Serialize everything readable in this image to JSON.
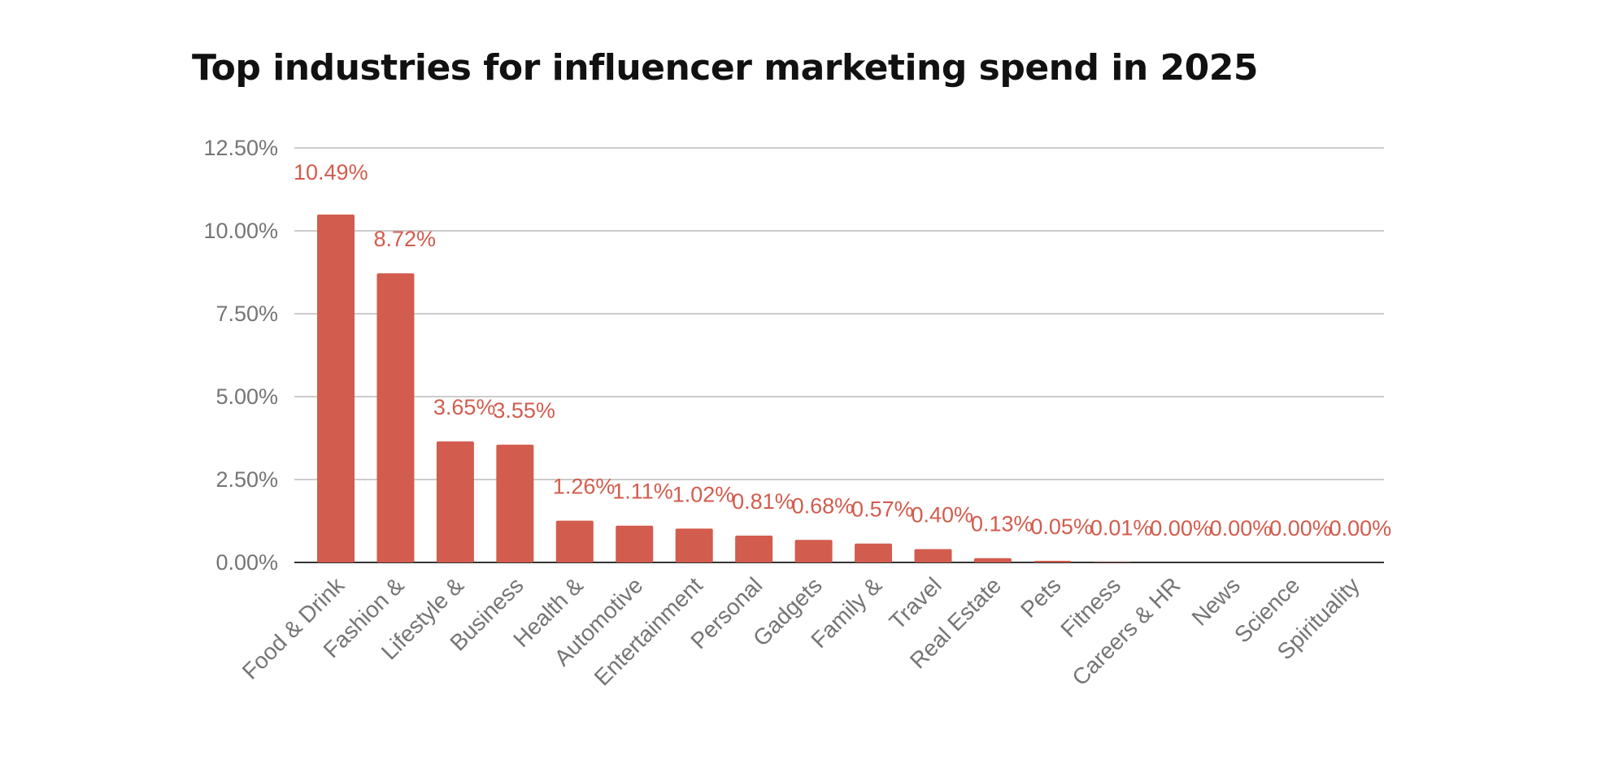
{
  "chart_data": {
    "type": "bar",
    "title": "Top industries for influencer marketing spend in 2025",
    "categories": [
      "Food & Drink",
      "Fashion &",
      "Lifestyle &",
      "Business",
      "Health &",
      "Automotive",
      "Entertainment",
      "Personal",
      "Gadgets",
      "Family &",
      "Travel",
      "Real Estate",
      "Pets",
      "Fitness",
      "Careers & HR",
      "News",
      "Science",
      "Spirituality"
    ],
    "values": [
      10.49,
      8.72,
      3.65,
      3.55,
      1.26,
      1.11,
      1.02,
      0.81,
      0.68,
      0.57,
      0.4,
      0.13,
      0.05,
      0.01,
      0.0,
      0.0,
      0.0,
      0.0
    ],
    "data_labels": [
      "10.49%",
      "8.72%",
      "3.65%",
      "3.55%",
      "1.26%",
      "1.11%",
      "1.02%",
      "0.81%",
      "0.68%",
      "0.57%",
      "0.40%",
      "0.13%",
      "0.05%",
      "0.01%",
      "0.00%",
      "0.00%",
      "0.00%",
      "0.00%"
    ],
    "y_ticks": [
      "0.00%",
      "2.50%",
      "5.00%",
      "7.50%",
      "10.00%",
      "12.50%"
    ],
    "ylim": [
      0,
      12.5
    ],
    "xlabel": "",
    "ylabel": "",
    "grid": true,
    "legend": "none",
    "bar_color": "#d25c4d",
    "label_color": "#d25c4d"
  }
}
